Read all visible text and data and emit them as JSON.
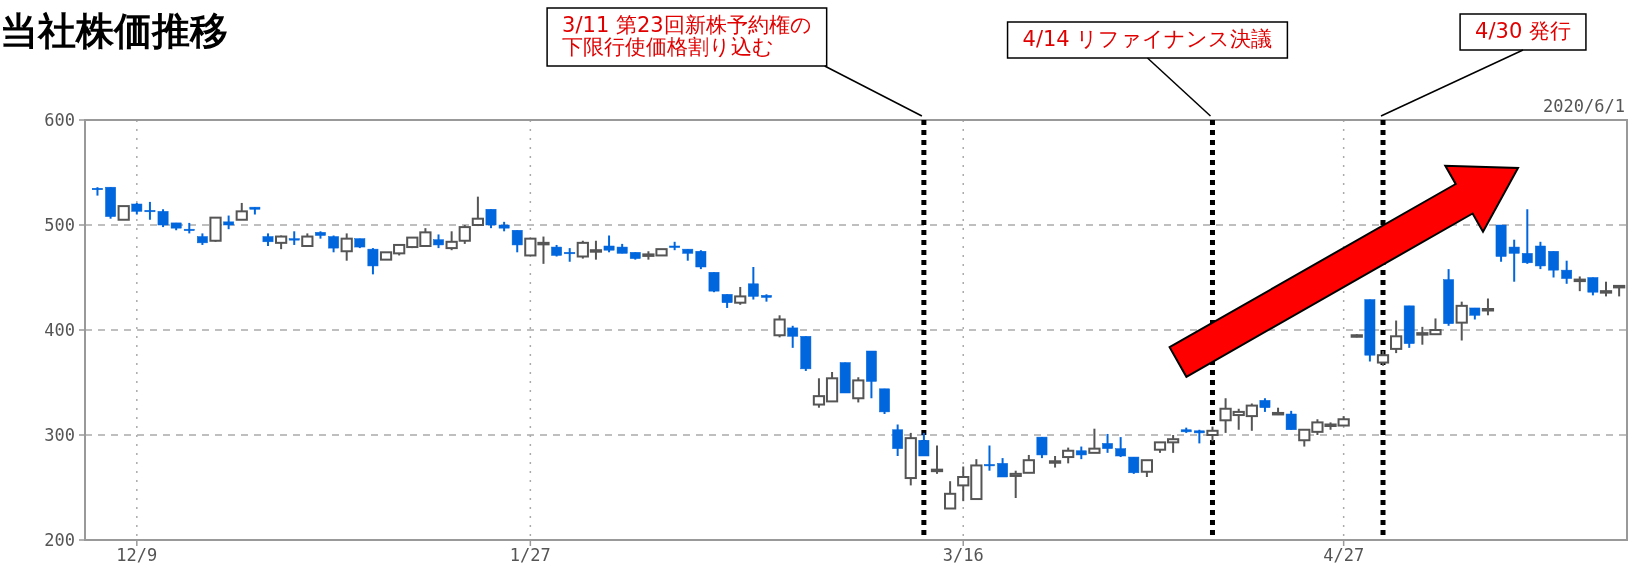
{
  "chart_data": {
    "type": "candlestick",
    "title": "当社株価推移",
    "colors": [
      "#0066dd",
      "#0066dd",
      "#ffffff",
      "#0066dd",
      "#0066dd",
      "#0066dd",
      "#0066dd",
      "#0066dd",
      "#0066dd",
      "#ffffff",
      "#0066dd",
      "#ffffff",
      "#0066dd",
      "#0066dd",
      "#ffffff",
      "#0066dd",
      "#ffffff",
      "#0066dd",
      "#0066dd",
      "#ffffff",
      "#0066dd",
      "#0066dd",
      "#ffffff",
      "#ffffff",
      "#ffffff",
      "#ffffff",
      "#0066dd",
      "#ffffff",
      "#ffffff",
      "#ffffff",
      "#0066dd",
      "#0066dd",
      "#0066dd",
      "#ffffff",
      "#ffffff",
      "#0066dd",
      "#0066dd",
      "#ffffff",
      "#ffffff",
      "#0066dd",
      "#0066dd",
      "#0066dd",
      "#ffffff",
      "#ffffff",
      "#0066dd",
      "#0066dd",
      "#0066dd",
      "#0066dd",
      "#0066dd",
      "#ffffff",
      "#0066dd",
      "#0066dd",
      "#ffffff",
      "#0066dd",
      "#0066dd",
      "#ffffff",
      "#ffffff",
      "#0066dd",
      "#ffffff",
      "#0066dd",
      "#0066dd",
      "#0066dd",
      "#ffffff",
      "#0066dd",
      "#ffffff",
      "#ffffff",
      "#ffffff",
      "#ffffff",
      "#0066dd",
      "#0066dd",
      "#ffffff",
      "#ffffff",
      "#0066dd",
      "#ffffff",
      "#ffffff",
      "#0066dd",
      "#ffffff",
      "#0066dd",
      "#0066dd",
      "#0066dd",
      "#ffffff",
      "#ffffff",
      "#ffffff",
      "#0066dd",
      "#0066dd",
      "#ffffff",
      "#ffffff",
      "#ffffff",
      "#ffffff",
      "#0066dd",
      "#ffffff",
      "#0066dd",
      "#ffffff",
      "#ffffff",
      "#ffffff",
      "#ffffff",
      "#ffffff",
      "#0066dd",
      "#ffffff",
      "#ffffff",
      "#0066dd",
      "#ffffff",
      "#ffffff",
      "#0066dd",
      "#ffffff",
      "#0066dd",
      "#ffffff",
      "#0066dd",
      "#0066dd",
      "#0066dd",
      "#0066dd",
      "#0066dd",
      "#0066dd",
      "#ffffff",
      "#0066dd",
      "#ffffff",
      "#ffffff"
    ],
    "categories": [
      null,
      null,
      null,
      "12/9",
      null,
      null,
      null,
      null,
      null,
      null,
      null,
      null,
      null,
      null,
      null,
      null,
      null,
      null,
      null,
      null,
      null,
      null,
      null,
      null,
      null,
      null,
      null,
      null,
      null,
      null,
      null,
      null,
      null,
      "1/27",
      null,
      null,
      null,
      null,
      null,
      null,
      null,
      null,
      null,
      null,
      null,
      null,
      null,
      null,
      null,
      null,
      null,
      null,
      null,
      null,
      null,
      null,
      null,
      null,
      null,
      null,
      null,
      null,
      null,
      null,
      null,
      null,
      "3/16",
      null,
      null,
      null,
      null,
      null,
      null,
      null,
      null,
      null,
      null,
      null,
      null,
      null,
      null,
      null,
      null,
      null,
      null,
      null,
      null,
      null,
      null,
      null,
      null,
      null,
      null,
      null,
      null,
      "4/27",
      null,
      null,
      null,
      null,
      null,
      null,
      null,
      null,
      null,
      null,
      null,
      null,
      null,
      null,
      null,
      null,
      null,
      null,
      null,
      null,
      null
    ],
    "ohlc": [
      [
        535,
        536,
        528,
        534
      ],
      [
        536,
        536,
        506,
        508
      ],
      [
        505,
        518,
        505,
        518
      ],
      [
        520,
        521,
        510,
        513
      ],
      [
        514,
        522,
        505,
        513
      ],
      [
        513,
        515,
        498,
        500
      ],
      [
        502,
        502,
        495,
        497
      ],
      [
        496,
        502,
        492,
        495
      ],
      [
        489,
        492,
        481,
        483
      ],
      [
        485,
        507,
        484,
        507
      ],
      [
        503,
        509,
        496,
        500
      ],
      [
        505,
        521,
        505,
        513
      ],
      [
        517,
        517,
        510,
        515
      ],
      [
        489,
        492,
        480,
        484
      ],
      [
        483,
        490,
        477,
        489
      ],
      [
        487,
        494,
        481,
        486
      ],
      [
        480,
        492,
        480,
        489
      ],
      [
        493,
        494,
        487,
        490
      ],
      [
        489,
        490,
        474,
        478
      ],
      [
        475,
        492,
        466,
        487
      ],
      [
        487,
        487,
        478,
        479
      ],
      [
        477,
        478,
        453,
        461
      ],
      [
        467,
        474,
        467,
        474
      ],
      [
        473,
        481,
        471,
        481
      ],
      [
        479,
        488,
        478,
        488
      ],
      [
        480,
        497,
        480,
        493
      ],
      [
        486,
        491,
        478,
        481
      ],
      [
        478,
        494,
        476,
        484
      ],
      [
        485,
        500,
        482,
        498
      ],
      [
        500,
        527,
        499,
        506
      ],
      [
        515,
        515,
        497,
        500
      ],
      [
        500,
        503,
        494,
        497
      ],
      [
        495,
        495,
        474,
        481
      ],
      [
        471,
        487,
        471,
        487
      ],
      [
        482,
        489,
        463,
        483
      ],
      [
        479,
        481,
        470,
        471
      ],
      [
        474,
        478,
        465,
        473
      ],
      [
        470,
        485,
        468,
        483
      ],
      [
        476,
        485,
        467,
        476
      ],
      [
        480,
        490,
        474,
        476
      ],
      [
        479,
        482,
        473,
        473
      ],
      [
        474,
        474,
        467,
        468
      ],
      [
        472,
        475,
        467,
        472
      ],
      [
        471,
        477,
        471,
        477
      ],
      [
        480,
        484,
        476,
        479
      ],
      [
        477,
        477,
        466,
        473
      ],
      [
        475,
        476,
        458,
        460
      ],
      [
        455,
        455,
        436,
        437
      ],
      [
        434,
        434,
        421,
        426
      ],
      [
        426,
        441,
        424,
        432
      ],
      [
        444,
        460,
        429,
        432
      ],
      [
        433,
        434,
        427,
        431
      ],
      [
        395,
        414,
        393,
        410
      ],
      [
        402,
        404,
        383,
        394
      ],
      [
        394,
        394,
        361,
        363
      ],
      [
        329,
        354,
        326,
        337
      ],
      [
        332,
        360,
        332,
        354
      ],
      [
        369,
        369,
        340,
        340
      ],
      [
        335,
        355,
        331,
        352
      ],
      [
        380,
        380,
        335,
        351
      ],
      [
        344,
        344,
        320,
        322
      ],
      [
        305,
        310,
        280,
        287
      ],
      [
        259,
        302,
        252,
        297
      ],
      [
        295,
        302,
        280,
        280
      ],
      [
        267,
        290,
        263,
        267
      ],
      [
        230,
        256,
        230,
        244
      ],
      [
        252,
        270,
        237,
        260
      ],
      [
        239,
        277,
        239,
        271
      ],
      [
        272,
        290,
        266,
        271
      ],
      [
        273,
        278,
        260,
        260
      ],
      [
        261,
        266,
        240,
        263
      ],
      [
        264,
        281,
        264,
        276
      ],
      [
        298,
        298,
        278,
        281
      ],
      [
        275,
        280,
        269,
        275
      ],
      [
        279,
        288,
        273,
        285
      ],
      [
        285,
        289,
        277,
        281
      ],
      [
        283,
        306,
        283,
        287
      ],
      [
        292,
        301,
        283,
        287
      ],
      [
        287,
        298,
        279,
        280
      ],
      [
        279,
        279,
        263,
        264
      ],
      [
        265,
        276,
        260,
        276
      ],
      [
        286,
        293,
        283,
        293
      ],
      [
        293,
        300,
        283,
        296
      ],
      [
        305,
        307,
        302,
        303
      ],
      [
        304,
        305,
        292,
        302
      ],
      [
        300,
        308,
        294,
        304
      ],
      [
        314,
        335,
        302,
        325
      ],
      [
        319,
        325,
        305,
        322
      ],
      [
        318,
        330,
        304,
        328
      ],
      [
        333,
        335,
        322,
        326
      ],
      [
        321,
        326,
        319,
        321
      ],
      [
        320,
        323,
        305,
        305
      ],
      [
        295,
        305,
        289,
        305
      ],
      [
        303,
        315,
        300,
        312
      ],
      [
        310,
        312,
        305,
        310
      ],
      [
        309,
        318,
        309,
        315
      ],
      [
        395,
        396,
        393,
        395
      ],
      [
        429,
        429,
        370,
        376
      ],
      [
        369,
        380,
        366,
        376
      ],
      [
        382,
        409,
        378,
        394
      ],
      [
        423,
        423,
        383,
        387
      ],
      [
        397,
        403,
        386,
        397
      ],
      [
        396,
        411,
        396,
        400
      ],
      [
        448,
        458,
        404,
        406
      ],
      [
        407,
        427,
        390,
        423
      ],
      [
        421,
        421,
        410,
        414
      ],
      [
        420,
        430,
        414,
        420
      ],
      [
        500,
        500,
        465,
        470
      ],
      [
        479,
        486,
        446,
        473
      ],
      [
        473,
        515,
        463,
        464
      ],
      [
        480,
        484,
        458,
        461
      ],
      [
        475,
        475,
        450,
        457
      ],
      [
        457,
        466,
        444,
        449
      ],
      [
        448,
        451,
        437,
        448
      ],
      [
        450,
        450,
        433,
        436
      ],
      [
        437,
        446,
        432,
        437
      ],
      [
        442,
        442,
        432,
        442
      ]
    ],
    "ylim": [
      200,
      600
    ],
    "yticks": [
      200,
      300,
      400,
      500,
      600
    ],
    "grid": true,
    "annotations": [
      "3/11 第23回新株予約権の下限行使価格割り込む",
      "4/14 リファイナンス決議",
      "4/30 発行",
      "2020/6/1"
    ]
  }
}
